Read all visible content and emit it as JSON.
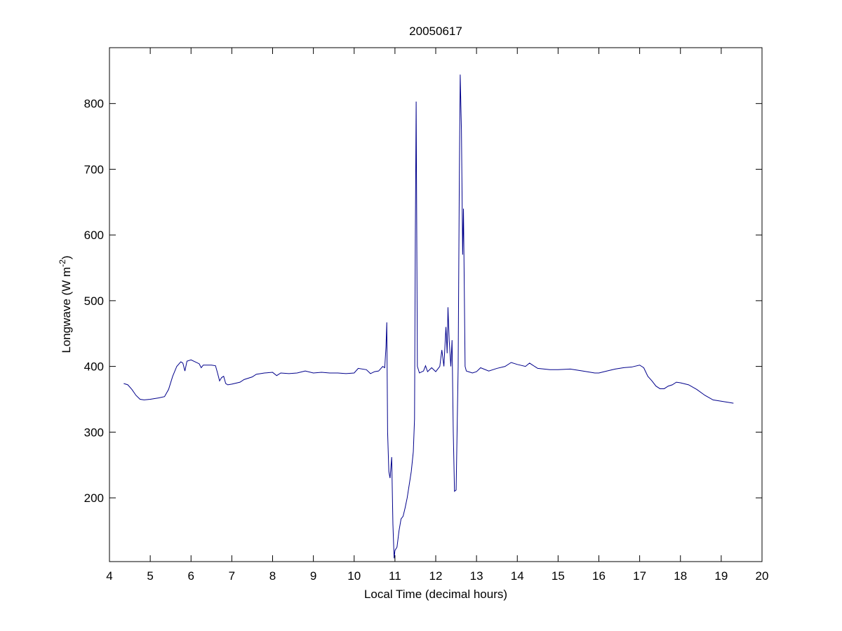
{
  "chart_data": {
    "type": "line",
    "title": "20050617",
    "x_label": "Local Time (decimal hours)",
    "y_label": "Longwave (W m",
    "y_label_sup": "-2",
    "y_label_end": ")",
    "xlim": [
      4,
      20
    ],
    "ylim": [
      103,
      885
    ],
    "xticks": [
      4,
      5,
      6,
      7,
      8,
      9,
      10,
      11,
      12,
      13,
      14,
      15,
      16,
      17,
      18,
      19,
      20
    ],
    "yticks": [
      200,
      300,
      400,
      500,
      600,
      700,
      800
    ],
    "grid": false,
    "series": [
      {
        "color": "#00008b",
        "x": [
          4.35,
          4.45,
          4.55,
          4.65,
          4.75,
          4.85,
          5.0,
          5.2,
          5.35,
          5.45,
          5.55,
          5.65,
          5.75,
          5.8,
          5.85,
          5.9,
          6.0,
          6.1,
          6.2,
          6.25,
          6.3,
          6.5,
          6.6,
          6.65,
          6.7,
          6.75,
          6.8,
          6.85,
          6.9,
          7.0,
          7.2,
          7.3,
          7.5,
          7.6,
          7.8,
          8.0,
          8.1,
          8.2,
          8.4,
          8.6,
          8.8,
          9.0,
          9.2,
          9.4,
          9.6,
          9.8,
          10.0,
          10.1,
          10.3,
          10.4,
          10.5,
          10.6,
          10.7,
          10.75,
          10.78,
          10.8,
          10.82,
          10.85,
          10.88,
          10.92,
          10.95,
          10.98,
          11.0,
          11.05,
          11.1,
          11.15,
          11.2,
          11.25,
          11.3,
          11.35,
          11.4,
          11.45,
          11.48,
          11.5,
          11.52,
          11.55,
          11.6,
          11.7,
          11.75,
          11.8,
          11.9,
          12.0,
          12.1,
          12.15,
          12.2,
          12.25,
          12.28,
          12.3,
          12.33,
          12.37,
          12.4,
          12.43,
          12.46,
          12.5,
          12.55,
          12.58,
          12.6,
          12.63,
          12.66,
          12.68,
          12.72,
          12.75,
          12.8,
          12.9,
          13.0,
          13.1,
          13.3,
          13.5,
          13.7,
          13.85,
          14.0,
          14.2,
          14.3,
          14.5,
          14.8,
          15.0,
          15.3,
          15.6,
          15.9,
          16.0,
          16.2,
          16.4,
          16.6,
          16.8,
          17.0,
          17.1,
          17.2,
          17.3,
          17.4,
          17.5,
          17.6,
          17.7,
          17.8,
          17.9,
          18.0,
          18.2,
          18.4,
          18.6,
          18.8,
          19.0,
          19.2,
          19.3
        ],
        "values": [
          374,
          372,
          365,
          356,
          350,
          349,
          350,
          352,
          354,
          365,
          385,
          400,
          407,
          405,
          393,
          408,
          410,
          407,
          404,
          398,
          402,
          402,
          401,
          390,
          378,
          383,
          385,
          374,
          372,
          373,
          376,
          380,
          384,
          388,
          390,
          391,
          386,
          390,
          389,
          390,
          393,
          390,
          391,
          390,
          390,
          389,
          390,
          397,
          395,
          389,
          392,
          393,
          400,
          398,
          430,
          467,
          300,
          240,
          230,
          262,
          160,
          108,
          120,
          125,
          150,
          168,
          172,
          185,
          200,
          220,
          240,
          270,
          320,
          600,
          803,
          400,
          390,
          393,
          401,
          392,
          398,
          392,
          400,
          425,
          400,
          460,
          420,
          490,
          440,
          400,
          440,
          300,
          210,
          212,
          400,
          700,
          844,
          760,
          570,
          640,
          400,
          393,
          392,
          390,
          392,
          398,
          393,
          397,
          400,
          406,
          403,
          400,
          405,
          397,
          395,
          395,
          396,
          393,
          390,
          390,
          393,
          396,
          398,
          399,
          402,
          398,
          385,
          378,
          370,
          366,
          366,
          370,
          372,
          376,
          375,
          372,
          365,
          356,
          349,
          347,
          345,
          344
        ]
      }
    ]
  }
}
